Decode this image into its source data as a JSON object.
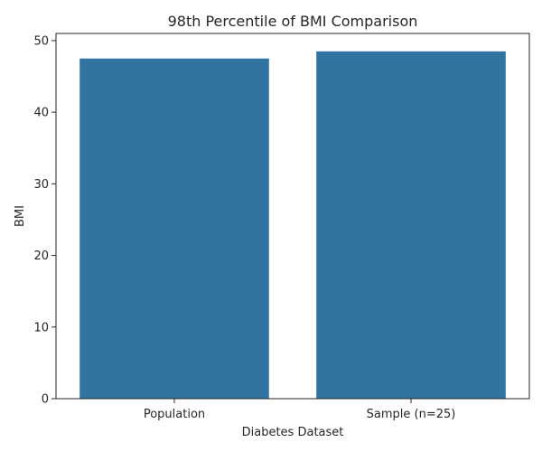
{
  "chart_data": {
    "type": "bar",
    "title": "98th Percentile of BMI Comparison",
    "xlabel": "Diabetes Dataset",
    "ylabel": "BMI",
    "categories": [
      "Population",
      "Sample (n=25)"
    ],
    "values": [
      47.5,
      48.5
    ],
    "ylim": [
      0,
      51
    ],
    "yticks": [
      0,
      10,
      20,
      30,
      40,
      50
    ],
    "ytick_labels": [
      "0",
      "10",
      "20",
      "30",
      "40",
      "50"
    ],
    "bar_color": "#3274a1",
    "grid": false,
    "legend": "none"
  }
}
